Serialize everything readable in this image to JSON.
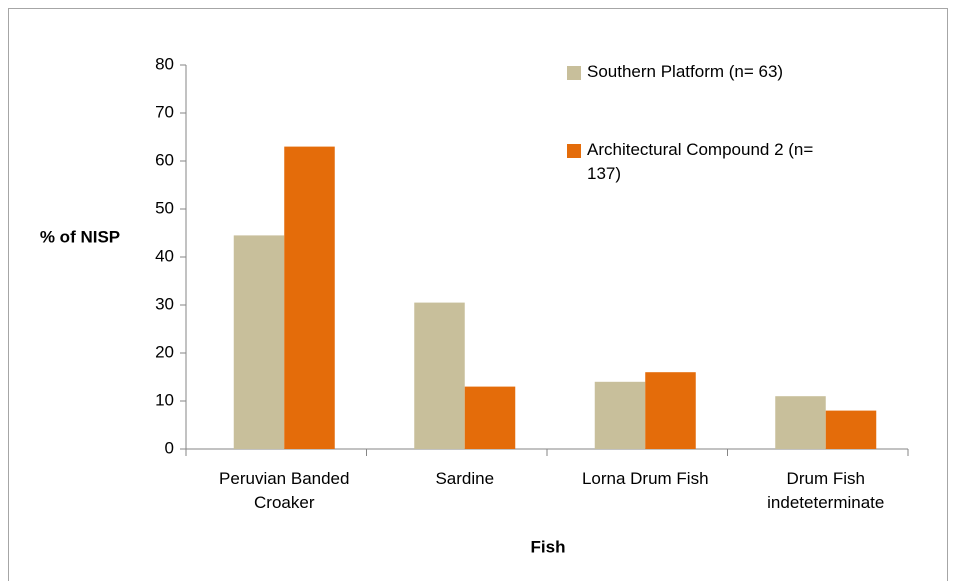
{
  "chart_data": {
    "type": "bar",
    "xlabel": "Fish",
    "ylabel": "% of NISP",
    "categories": [
      "Peruvian Banded Croaker",
      "Sardine",
      "Lorna Drum Fish",
      "Drum Fish indeteterminate"
    ],
    "series": [
      {
        "name": "Southern Platform (n= 63)",
        "color": "#c8bf9b",
        "values": [
          44.5,
          30.5,
          14,
          11
        ]
      },
      {
        "name": "Architectural Compound 2 (n= 137)",
        "color": "#e46c0a",
        "values": [
          63,
          13,
          16,
          8
        ]
      }
    ],
    "ylim": [
      0,
      80
    ],
    "yticks": [
      0,
      10,
      20,
      30,
      40,
      50,
      60,
      70,
      80
    ]
  }
}
